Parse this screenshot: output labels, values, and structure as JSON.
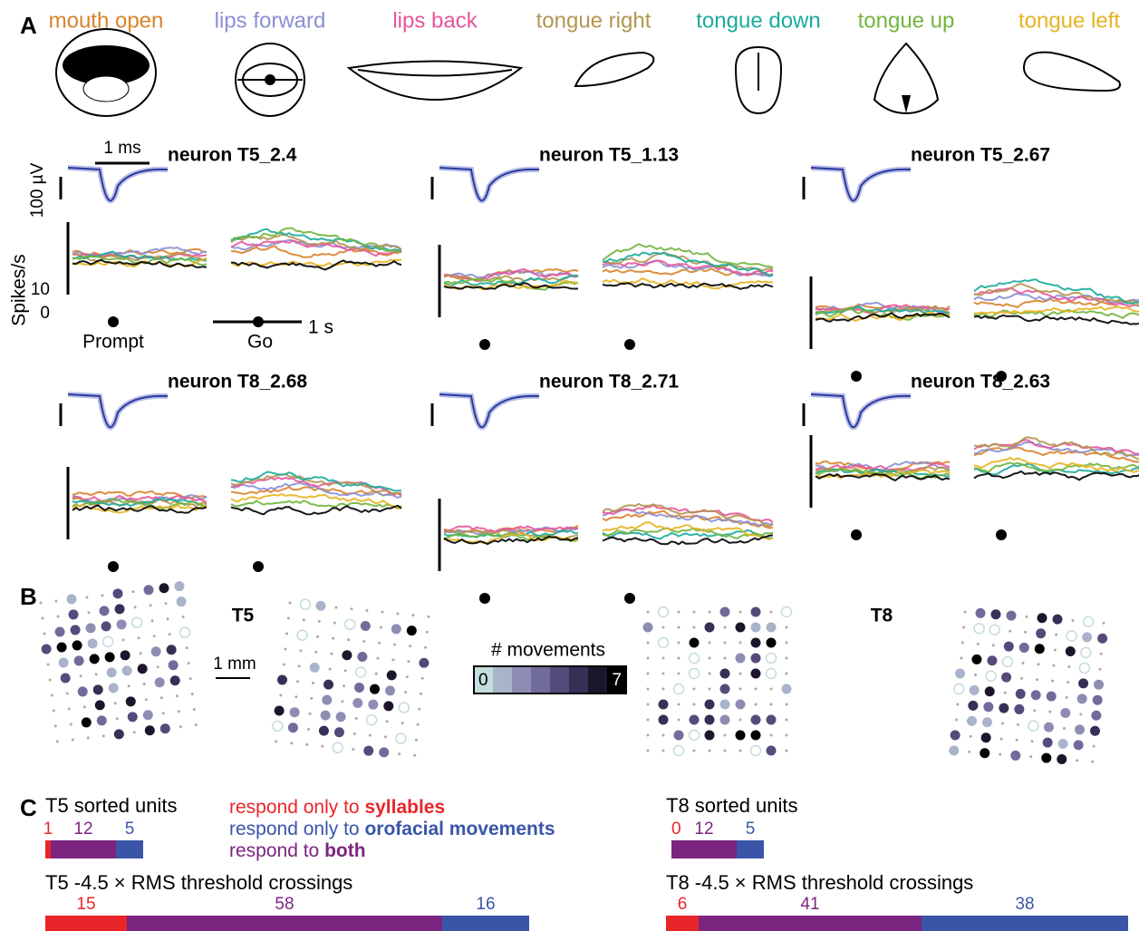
{
  "panel_a": {
    "label": "A",
    "movements": [
      {
        "name": "mouth open",
        "color": "#d9822b"
      },
      {
        "name": "lips forward",
        "color": "#8a8fd4"
      },
      {
        "name": "lips back",
        "color": "#e8559a"
      },
      {
        "name": "tongue right",
        "color": "#b39550"
      },
      {
        "name": "tongue down",
        "color": "#1aab9b"
      },
      {
        "name": "tongue up",
        "color": "#72b43c"
      },
      {
        "name": "tongue left",
        "color": "#e6b320"
      }
    ],
    "time_scale": "1 ms",
    "voltage_scale": "100 µV",
    "rate_axis_label": "Spikes/s",
    "rate_ticks": [
      10,
      0
    ],
    "prompt_label": "Prompt",
    "go_label": "Go",
    "go_scale": "1 s",
    "neurons": [
      "neuron T5_2.4",
      "neuron T5_1.13",
      "neuron T5_2.67",
      "neuron T8_2.68",
      "neuron T8_2.71",
      "neuron T8_2.63"
    ]
  },
  "panel_b": {
    "label": "B",
    "arrays": [
      "T5",
      "T8"
    ],
    "distance_scale": "1 mm",
    "legend_title": "# movements",
    "legend_min": 0,
    "legend_max": 7
  },
  "panel_c": {
    "label": "C",
    "legend": [
      {
        "parts": [
          "respond only to ",
          "syllables"
        ],
        "color": "#e8262a"
      },
      {
        "parts": [
          "respond only to ",
          "orofacial movements"
        ],
        "color": "#3a55a8"
      },
      {
        "parts": [
          "respond to ",
          "both"
        ],
        "color": "#7b2580"
      }
    ],
    "groups": [
      {
        "title": "T5 sorted units",
        "values": [
          1,
          12,
          5
        ]
      },
      {
        "title": "T8 sorted units",
        "values": [
          0,
          12,
          5
        ]
      },
      {
        "title": "T5 -4.5 × RMS threshold crossings",
        "values": [
          15,
          58,
          16
        ]
      },
      {
        "title": "T8 -4.5 × RMS threshold crossings",
        "values": [
          6,
          41,
          38
        ]
      }
    ]
  }
}
